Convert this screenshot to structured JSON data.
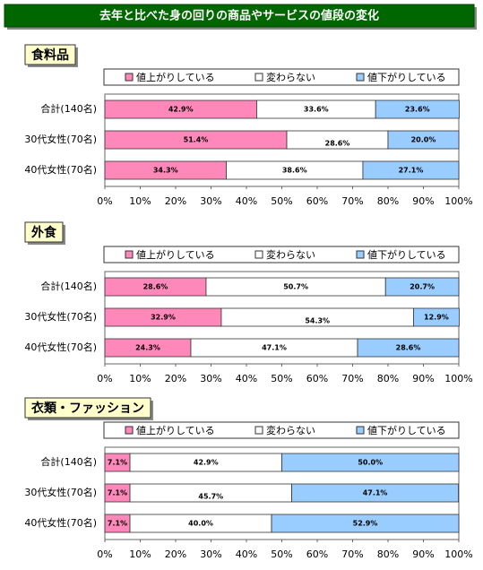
{
  "header": {
    "title": "去年と比べた身の回りの商品やサービスの値段の変化"
  },
  "chart_data": [
    {
      "type": "stacked_bar_h",
      "title": "食料品",
      "legend": "top",
      "categories": [
        "合計(140名)",
        "30代女性(70名)",
        "40代女性(70名)"
      ],
      "series": [
        {
          "name": "値上がりしている",
          "color": "#ff88bb",
          "values": [
            42.9,
            51.4,
            34.3
          ],
          "value_labels": [
            "42.9%",
            "51.4%",
            "34.3%"
          ]
        },
        {
          "name": "変わらない",
          "color": "#ffffff",
          "values": [
            33.6,
            28.6,
            38.6
          ],
          "value_labels": [
            "33.6%",
            "28.6%",
            "38.6%"
          ]
        },
        {
          "name": "値下がりしている",
          "color": "#99ccff",
          "values": [
            23.6,
            20.0,
            27.1
          ],
          "value_labels": [
            "23.6%",
            "20.0%",
            "27.1%"
          ]
        }
      ],
      "xlim": [
        0,
        100
      ],
      "xticks": [
        {
          "value": 0,
          "label": "0%"
        },
        {
          "value": 10,
          "label": "10%"
        },
        {
          "value": 20,
          "label": "20%"
        },
        {
          "value": 30,
          "label": "30%"
        },
        {
          "value": 40,
          "label": "40%"
        },
        {
          "value": 50,
          "label": "50%"
        },
        {
          "value": 60,
          "label": "60%"
        },
        {
          "value": 70,
          "label": "70%"
        },
        {
          "value": 80,
          "label": "80%"
        },
        {
          "value": 90,
          "label": "90%"
        },
        {
          "value": 100,
          "label": "100%"
        }
      ]
    },
    {
      "type": "stacked_bar_h",
      "title": "外食",
      "legend": "top",
      "categories": [
        "合計(140名)",
        "30代女性(70名)",
        "40代女性(70名)"
      ],
      "series": [
        {
          "name": "値上がりしている",
          "color": "#ff88bb",
          "values": [
            28.6,
            32.9,
            24.3
          ],
          "value_labels": [
            "28.6%",
            "32.9%",
            "24.3%"
          ]
        },
        {
          "name": "変わらない",
          "color": "#ffffff",
          "values": [
            50.7,
            54.3,
            47.1
          ],
          "value_labels": [
            "50.7%",
            "54.3%",
            "47.1%"
          ]
        },
        {
          "name": "値下がりしている",
          "color": "#99ccff",
          "values": [
            20.7,
            12.9,
            28.6
          ],
          "value_labels": [
            "20.7%",
            "12.9%",
            "28.6%"
          ]
        }
      ],
      "xlim": [
        0,
        100
      ],
      "xticks": [
        {
          "value": 0,
          "label": "0%"
        },
        {
          "value": 10,
          "label": "10%"
        },
        {
          "value": 20,
          "label": "20%"
        },
        {
          "value": 30,
          "label": "30%"
        },
        {
          "value": 40,
          "label": "40%"
        },
        {
          "value": 50,
          "label": "50%"
        },
        {
          "value": 60,
          "label": "60%"
        },
        {
          "value": 70,
          "label": "70%"
        },
        {
          "value": 80,
          "label": "80%"
        },
        {
          "value": 90,
          "label": "90%"
        },
        {
          "value": 100,
          "label": "100%"
        }
      ]
    },
    {
      "type": "stacked_bar_h",
      "title": "衣類・ファッション",
      "legend": "top",
      "categories": [
        "合計(140名)",
        "30代女性(70名)",
        "40代女性(70名)"
      ],
      "series": [
        {
          "name": "値上がりしている",
          "color": "#ff88bb",
          "values": [
            7.1,
            7.1,
            7.1
          ],
          "value_labels": [
            "7.1%",
            "7.1%",
            "7.1%"
          ]
        },
        {
          "name": "変わらない",
          "color": "#ffffff",
          "values": [
            42.9,
            45.7,
            40.0
          ],
          "value_labels": [
            "42.9%",
            "45.7%",
            "40.0%"
          ]
        },
        {
          "name": "値下がりしている",
          "color": "#99ccff",
          "values": [
            50.0,
            47.1,
            52.9
          ],
          "value_labels": [
            "50.0%",
            "47.1%",
            "52.9%"
          ]
        }
      ],
      "xlim": [
        0,
        100
      ],
      "xticks": [
        {
          "value": 0,
          "label": "0%"
        },
        {
          "value": 10,
          "label": "10%"
        },
        {
          "value": 20,
          "label": "20%"
        },
        {
          "value": 30,
          "label": "30%"
        },
        {
          "value": 40,
          "label": "40%"
        },
        {
          "value": 50,
          "label": "50%"
        },
        {
          "value": 60,
          "label": "60%"
        },
        {
          "value": 70,
          "label": "70%"
        },
        {
          "value": 80,
          "label": "80%"
        },
        {
          "value": 90,
          "label": "90%"
        },
        {
          "value": 100,
          "label": "100%"
        }
      ]
    }
  ]
}
